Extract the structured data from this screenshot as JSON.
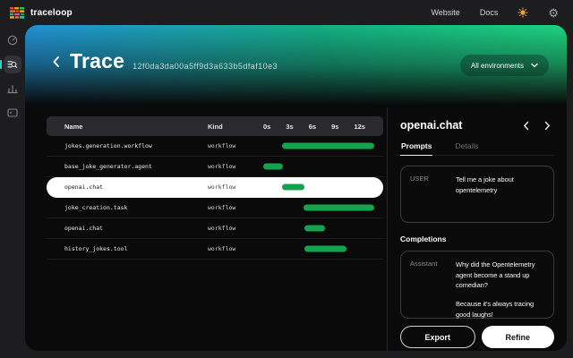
{
  "topbar": {
    "brand": "traceloop",
    "links": [
      {
        "label": "Website"
      },
      {
        "label": "Docs"
      }
    ]
  },
  "sidebar": {
    "items": [
      {
        "icon": "gauge-icon",
        "active": false
      },
      {
        "icon": "trace-search-icon",
        "active": true
      },
      {
        "icon": "bar-chart-icon",
        "active": false
      },
      {
        "icon": "terminal-icon",
        "active": false
      }
    ]
  },
  "header": {
    "title": "Trace",
    "trace_id": "12f0da3da00a5ff9d3a633b5dfaf10e3",
    "environment_selector": {
      "label": "All environments"
    }
  },
  "table": {
    "columns": {
      "name": "Name",
      "kind": "Kind"
    },
    "time_ticks": [
      "0s",
      "3s",
      "6s",
      "9s",
      "12s"
    ],
    "rows": [
      {
        "name": "jokes.generation.workflow",
        "kind": "workflow",
        "selected": false,
        "bar": {
          "left_pct": 17,
          "width_pct": 83
        }
      },
      {
        "name": "base_joke_generator.agent",
        "kind": "workflow",
        "selected": false,
        "bar": {
          "left_pct": 0,
          "width_pct": 18
        }
      },
      {
        "name": "openai.chat",
        "kind": "workflow",
        "selected": true,
        "bar": {
          "left_pct": 17,
          "width_pct": 20
        }
      },
      {
        "name": "joke_creation.task",
        "kind": "workflow",
        "selected": false,
        "bar": {
          "left_pct": 36,
          "width_pct": 64
        }
      },
      {
        "name": "openai.chat",
        "kind": "workflow",
        "selected": false,
        "bar": {
          "left_pct": 37,
          "width_pct": 19
        }
      },
      {
        "name": "history_jokes.tool",
        "kind": "workflow",
        "selected": false,
        "bar": {
          "left_pct": 37,
          "width_pct": 38
        }
      }
    ]
  },
  "detail_panel": {
    "title": "openai.chat",
    "tabs": [
      {
        "label": "Prompts",
        "active": true
      },
      {
        "label": "Details",
        "active": false
      }
    ],
    "prompt": {
      "role": "USER",
      "text": "Tell me a joke about opentelemetry"
    },
    "completions_label": "Completions",
    "completion": {
      "role": "Assistant",
      "paragraphs": [
        "Why did the Opentelemetry agent become a stand up comedian?",
        "Because it's always tracing good laughs!"
      ]
    },
    "actions": [
      {
        "label": "Export",
        "style": "outline"
      },
      {
        "label": "Refine",
        "style": "solid"
      }
    ]
  },
  "colors": {
    "accent_green": "#13a24e",
    "gradient_blue": "#2191d6",
    "gradient_green": "#1ed37f",
    "sidebar_accent": "#2dd4bf",
    "sun_orange": "#e8a33d"
  }
}
